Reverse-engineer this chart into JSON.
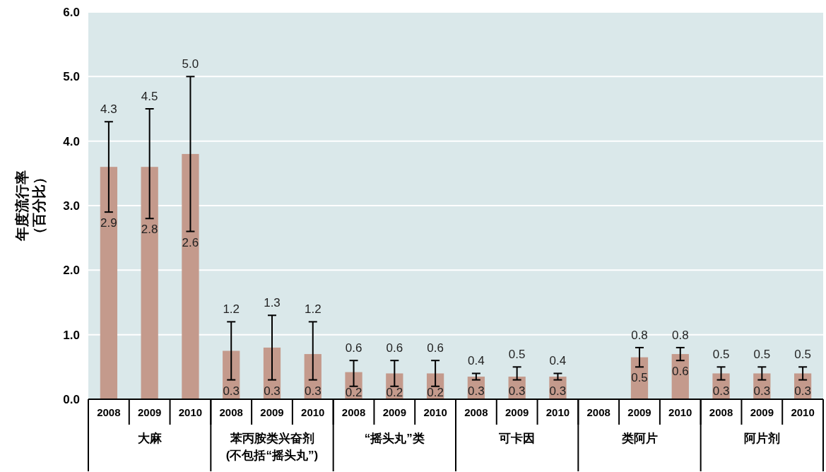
{
  "chart_data": {
    "type": "bar",
    "ylabel": "年度流行率（百分比）",
    "categories": [
      "2008",
      "2009",
      "2010",
      "2008",
      "2009",
      "2010",
      "2008",
      "2009",
      "2010",
      "2008",
      "2009",
      "2010",
      "2008",
      "2009",
      "2010",
      "2008",
      "2009",
      "2010"
    ],
    "values": [
      3.6,
      3.6,
      3.8,
      0.75,
      0.8,
      0.7,
      0.42,
      0.4,
      0.4,
      0.35,
      0.35,
      0.35,
      null,
      0.65,
      0.7,
      0.4,
      0.4,
      0.4
    ],
    "color": "#c49a8c",
    "errors": [
      [
        2.9,
        4.3
      ],
      [
        2.8,
        4.5
      ],
      [
        2.6,
        5.0
      ],
      [
        0.3,
        1.2
      ],
      [
        0.3,
        1.3
      ],
      [
        0.3,
        1.2
      ],
      [
        0.2,
        0.6
      ],
      [
        0.2,
        0.6
      ],
      [
        0.2,
        0.6
      ],
      [
        0.3,
        0.4
      ],
      [
        0.3,
        0.5
      ],
      [
        0.3,
        0.4
      ],
      null,
      [
        0.5,
        0.8
      ],
      [
        0.6,
        0.8
      ],
      [
        0.3,
        0.5
      ],
      [
        0.3,
        0.5
      ],
      [
        0.3,
        0.5
      ]
    ],
    "ylim": [
      0,
      6
    ],
    "yticks": [
      {
        "value": 0,
        "label": "0.0"
      },
      {
        "value": 1,
        "label": "1.0"
      },
      {
        "value": 2,
        "label": "2.0"
      },
      {
        "value": 3,
        "label": "3.0"
      },
      {
        "value": 4,
        "label": "4.0"
      },
      {
        "value": 5,
        "label": "5.0"
      },
      {
        "value": 6,
        "label": "6.0"
      }
    ],
    "grid": "y",
    "annotations": [
      "大麻",
      "苯丙胺类兴奋剂(不包括“摇头丸”)",
      "“摇头丸”类",
      "可卡因",
      "类阿片",
      "阿片剂",
      {
        "text": "4.3",
        "y": 4.3
      },
      {
        "text": "2.9",
        "y": 2.9
      },
      {
        "text": "4.5",
        "y": 4.5
      },
      {
        "text": "2.8",
        "y": 2.8
      },
      {
        "text": "5.0",
        "y": 5.0
      },
      {
        "text": "2.6",
        "y": 2.6
      },
      {
        "text": "1.2",
        "y": 1.2
      },
      {
        "text": "0.3",
        "y": 0.3
      },
      {
        "text": "1.3",
        "y": 1.3
      },
      {
        "text": "0.3",
        "y": 0.3
      },
      {
        "text": "1.2",
        "y": 1.2
      },
      {
        "text": "0.3",
        "y": 0.3
      },
      {
        "text": "0.6",
        "y": 0.6
      },
      {
        "text": "0.2",
        "y": 0.2
      },
      {
        "text": "0.6",
        "y": 0.6
      },
      {
        "text": "0.2",
        "y": 0.2
      },
      {
        "text": "0.6",
        "y": 0.6
      },
      {
        "text": "0.2",
        "y": 0.2
      },
      {
        "text": "0.4",
        "y": 0.4
      },
      {
        "text": "0.3",
        "y": 0.3
      },
      {
        "text": "0.5",
        "y": 0.5
      },
      {
        "text": "0.3",
        "y": 0.3
      },
      {
        "text": "0.4",
        "y": 0.4
      },
      {
        "text": "0.3",
        "y": 0.3
      },
      {
        "text": "0.8",
        "y": 0.8
      },
      {
        "text": "0.5",
        "y": 0.5
      },
      {
        "text": "0.8",
        "y": 0.8
      },
      {
        "text": "0.6",
        "y": 0.6
      },
      {
        "text": "0.5",
        "y": 0.5
      },
      {
        "text": "0.3",
        "y": 0.3
      },
      {
        "text": "0.5",
        "y": 0.5
      },
      {
        "text": "0.3",
        "y": 0.3
      },
      {
        "text": "0.5",
        "y": 0.5
      },
      {
        "text": "0.3",
        "y": 0.3
      }
    ]
  }
}
